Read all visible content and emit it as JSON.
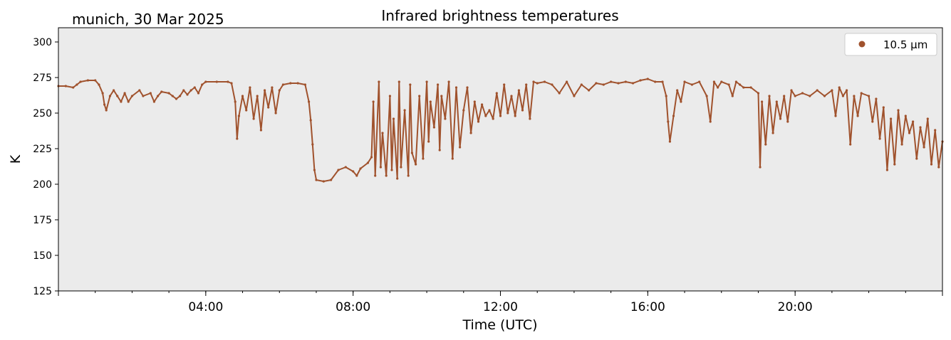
{
  "header": {
    "location_date": "munich, 30 Mar 2025"
  },
  "chart_data": {
    "type": "scatter",
    "title": "Infrared brightness temperatures",
    "xlabel": "Time (UTC)",
    "ylabel": "K",
    "xlim": [
      0,
      24
    ],
    "ylim": [
      125,
      310
    ],
    "x_ticks": [
      4,
      8,
      12,
      16,
      20
    ],
    "x_tick_labels": [
      "04:00",
      "08:00",
      "12:00",
      "16:00",
      "20:00"
    ],
    "y_ticks": [
      125,
      150,
      175,
      200,
      225,
      250,
      275,
      300
    ],
    "y_tick_labels": [
      "125",
      "150",
      "175",
      "200",
      "225",
      "250",
      "275",
      "300"
    ],
    "grid": false,
    "legend_position": "top-right",
    "colors": {
      "series": "#a0522d",
      "plot_background": "#ebebeb"
    },
    "series": [
      {
        "name": "10.5 µm",
        "points": [
          [
            0.0,
            269
          ],
          [
            0.2,
            269
          ],
          [
            0.4,
            268
          ],
          [
            0.5,
            270
          ],
          [
            0.6,
            272
          ],
          [
            0.8,
            273
          ],
          [
            1.0,
            273
          ],
          [
            1.1,
            270
          ],
          [
            1.2,
            264
          ],
          [
            1.25,
            256
          ],
          [
            1.3,
            252
          ],
          [
            1.4,
            262
          ],
          [
            1.5,
            266
          ],
          [
            1.6,
            262
          ],
          [
            1.7,
            258
          ],
          [
            1.8,
            264
          ],
          [
            1.9,
            258
          ],
          [
            2.0,
            262
          ],
          [
            2.2,
            266
          ],
          [
            2.3,
            262
          ],
          [
            2.5,
            264
          ],
          [
            2.6,
            258
          ],
          [
            2.7,
            262
          ],
          [
            2.8,
            265
          ],
          [
            3.0,
            264
          ],
          [
            3.1,
            262
          ],
          [
            3.2,
            260
          ],
          [
            3.3,
            262
          ],
          [
            3.4,
            266
          ],
          [
            3.5,
            263
          ],
          [
            3.6,
            266
          ],
          [
            3.7,
            268
          ],
          [
            3.8,
            264
          ],
          [
            3.9,
            270
          ],
          [
            4.0,
            272
          ],
          [
            4.3,
            272
          ],
          [
            4.6,
            272
          ],
          [
            4.7,
            271
          ],
          [
            4.8,
            258
          ],
          [
            4.85,
            232
          ],
          [
            4.9,
            248
          ],
          [
            5.0,
            262
          ],
          [
            5.1,
            252
          ],
          [
            5.2,
            268
          ],
          [
            5.3,
            246
          ],
          [
            5.4,
            262
          ],
          [
            5.5,
            238
          ],
          [
            5.6,
            266
          ],
          [
            5.7,
            254
          ],
          [
            5.8,
            268
          ],
          [
            5.9,
            250
          ],
          [
            6.0,
            266
          ],
          [
            6.1,
            270
          ],
          [
            6.3,
            271
          ],
          [
            6.5,
            271
          ],
          [
            6.7,
            270
          ],
          [
            6.8,
            258
          ],
          [
            6.85,
            245
          ],
          [
            6.9,
            228
          ],
          [
            6.95,
            210
          ],
          [
            7.0,
            203
          ],
          [
            7.2,
            202
          ],
          [
            7.4,
            203
          ],
          [
            7.6,
            210
          ],
          [
            7.8,
            212
          ],
          [
            8.0,
            209
          ],
          [
            8.1,
            206
          ],
          [
            8.2,
            211
          ],
          [
            8.4,
            215
          ],
          [
            8.5,
            219
          ],
          [
            8.55,
            258
          ],
          [
            8.6,
            206
          ],
          [
            8.7,
            272
          ],
          [
            8.75,
            212
          ],
          [
            8.8,
            236
          ],
          [
            8.9,
            206
          ],
          [
            9.0,
            262
          ],
          [
            9.05,
            210
          ],
          [
            9.1,
            246
          ],
          [
            9.2,
            204
          ],
          [
            9.25,
            272
          ],
          [
            9.3,
            212
          ],
          [
            9.4,
            252
          ],
          [
            9.5,
            206
          ],
          [
            9.55,
            270
          ],
          [
            9.6,
            222
          ],
          [
            9.7,
            214
          ],
          [
            9.8,
            262
          ],
          [
            9.9,
            218
          ],
          [
            10.0,
            272
          ],
          [
            10.05,
            230
          ],
          [
            10.1,
            258
          ],
          [
            10.2,
            240
          ],
          [
            10.3,
            270
          ],
          [
            10.35,
            224
          ],
          [
            10.4,
            262
          ],
          [
            10.5,
            246
          ],
          [
            10.6,
            272
          ],
          [
            10.7,
            218
          ],
          [
            10.8,
            268
          ],
          [
            10.9,
            226
          ],
          [
            11.0,
            252
          ],
          [
            11.1,
            268
          ],
          [
            11.2,
            236
          ],
          [
            11.3,
            258
          ],
          [
            11.4,
            244
          ],
          [
            11.5,
            256
          ],
          [
            11.6,
            248
          ],
          [
            11.7,
            252
          ],
          [
            11.8,
            246
          ],
          [
            11.9,
            264
          ],
          [
            12.0,
            248
          ],
          [
            12.1,
            270
          ],
          [
            12.2,
            250
          ],
          [
            12.3,
            262
          ],
          [
            12.4,
            248
          ],
          [
            12.5,
            266
          ],
          [
            12.6,
            252
          ],
          [
            12.7,
            270
          ],
          [
            12.8,
            246
          ],
          [
            12.9,
            272
          ],
          [
            13.0,
            271
          ],
          [
            13.2,
            272
          ],
          [
            13.4,
            270
          ],
          [
            13.6,
            264
          ],
          [
            13.8,
            272
          ],
          [
            14.0,
            262
          ],
          [
            14.2,
            270
          ],
          [
            14.4,
            266
          ],
          [
            14.6,
            271
          ],
          [
            14.8,
            270
          ],
          [
            15.0,
            272
          ],
          [
            15.2,
            271
          ],
          [
            15.4,
            272
          ],
          [
            15.6,
            271
          ],
          [
            15.8,
            273
          ],
          [
            16.0,
            274
          ],
          [
            16.2,
            272
          ],
          [
            16.4,
            272
          ],
          [
            16.5,
            262
          ],
          [
            16.55,
            244
          ],
          [
            16.6,
            230
          ],
          [
            16.7,
            248
          ],
          [
            16.8,
            266
          ],
          [
            16.9,
            258
          ],
          [
            17.0,
            272
          ],
          [
            17.2,
            270
          ],
          [
            17.4,
            272
          ],
          [
            17.6,
            262
          ],
          [
            17.7,
            244
          ],
          [
            17.8,
            272
          ],
          [
            17.9,
            268
          ],
          [
            18.0,
            272
          ],
          [
            18.2,
            270
          ],
          [
            18.3,
            262
          ],
          [
            18.4,
            272
          ],
          [
            18.5,
            270
          ],
          [
            18.6,
            268
          ],
          [
            18.8,
            268
          ],
          [
            19.0,
            264
          ],
          [
            19.05,
            212
          ],
          [
            19.1,
            258
          ],
          [
            19.2,
            228
          ],
          [
            19.3,
            262
          ],
          [
            19.4,
            236
          ],
          [
            19.5,
            258
          ],
          [
            19.6,
            246
          ],
          [
            19.7,
            262
          ],
          [
            19.8,
            244
          ],
          [
            19.9,
            266
          ],
          [
            20.0,
            262
          ],
          [
            20.2,
            264
          ],
          [
            20.4,
            262
          ],
          [
            20.6,
            266
          ],
          [
            20.8,
            262
          ],
          [
            21.0,
            266
          ],
          [
            21.1,
            248
          ],
          [
            21.2,
            268
          ],
          [
            21.3,
            262
          ],
          [
            21.4,
            266
          ],
          [
            21.5,
            228
          ],
          [
            21.6,
            262
          ],
          [
            21.7,
            248
          ],
          [
            21.8,
            264
          ],
          [
            22.0,
            262
          ],
          [
            22.1,
            244
          ],
          [
            22.2,
            260
          ],
          [
            22.3,
            232
          ],
          [
            22.4,
            254
          ],
          [
            22.5,
            210
          ],
          [
            22.6,
            246
          ],
          [
            22.7,
            214
          ],
          [
            22.8,
            252
          ],
          [
            22.9,
            228
          ],
          [
            23.0,
            248
          ],
          [
            23.1,
            236
          ],
          [
            23.2,
            244
          ],
          [
            23.3,
            218
          ],
          [
            23.4,
            240
          ],
          [
            23.5,
            226
          ],
          [
            23.6,
            246
          ],
          [
            23.7,
            214
          ],
          [
            23.8,
            238
          ],
          [
            23.9,
            212
          ],
          [
            24.0,
            230
          ]
        ]
      }
    ]
  }
}
